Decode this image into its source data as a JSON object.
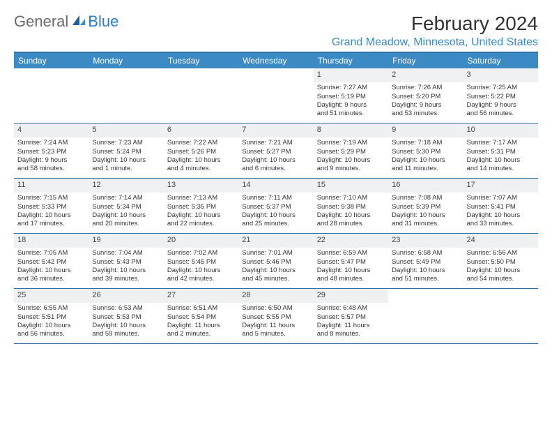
{
  "brand": {
    "part1": "General",
    "part2": "Blue"
  },
  "title": "February 2024",
  "location": "Grand Meadow, Minnesota, United States",
  "colors": {
    "header_bg": "#3b8ac4",
    "header_border": "#2d6fa8",
    "location_text": "#3b8ac4",
    "alt_row_bg": "#eef0f2"
  },
  "day_names": [
    "Sunday",
    "Monday",
    "Tuesday",
    "Wednesday",
    "Thursday",
    "Friday",
    "Saturday"
  ],
  "weeks": [
    [
      null,
      null,
      null,
      null,
      {
        "n": "1",
        "sunrise": "Sunrise: 7:27 AM",
        "sunset": "Sunset: 5:19 PM",
        "d1": "Daylight: 9 hours",
        "d2": "and 51 minutes."
      },
      {
        "n": "2",
        "sunrise": "Sunrise: 7:26 AM",
        "sunset": "Sunset: 5:20 PM",
        "d1": "Daylight: 9 hours",
        "d2": "and 53 minutes."
      },
      {
        "n": "3",
        "sunrise": "Sunrise: 7:25 AM",
        "sunset": "Sunset: 5:22 PM",
        "d1": "Daylight: 9 hours",
        "d2": "and 56 minutes."
      }
    ],
    [
      {
        "n": "4",
        "sunrise": "Sunrise: 7:24 AM",
        "sunset": "Sunset: 5:23 PM",
        "d1": "Daylight: 9 hours",
        "d2": "and 58 minutes."
      },
      {
        "n": "5",
        "sunrise": "Sunrise: 7:23 AM",
        "sunset": "Sunset: 5:24 PM",
        "d1": "Daylight: 10 hours",
        "d2": "and 1 minute."
      },
      {
        "n": "6",
        "sunrise": "Sunrise: 7:22 AM",
        "sunset": "Sunset: 5:26 PM",
        "d1": "Daylight: 10 hours",
        "d2": "and 4 minutes."
      },
      {
        "n": "7",
        "sunrise": "Sunrise: 7:21 AM",
        "sunset": "Sunset: 5:27 PM",
        "d1": "Daylight: 10 hours",
        "d2": "and 6 minutes."
      },
      {
        "n": "8",
        "sunrise": "Sunrise: 7:19 AM",
        "sunset": "Sunset: 5:29 PM",
        "d1": "Daylight: 10 hours",
        "d2": "and 9 minutes."
      },
      {
        "n": "9",
        "sunrise": "Sunrise: 7:18 AM",
        "sunset": "Sunset: 5:30 PM",
        "d1": "Daylight: 10 hours",
        "d2": "and 11 minutes."
      },
      {
        "n": "10",
        "sunrise": "Sunrise: 7:17 AM",
        "sunset": "Sunset: 5:31 PM",
        "d1": "Daylight: 10 hours",
        "d2": "and 14 minutes."
      }
    ],
    [
      {
        "n": "11",
        "sunrise": "Sunrise: 7:15 AM",
        "sunset": "Sunset: 5:33 PM",
        "d1": "Daylight: 10 hours",
        "d2": "and 17 minutes."
      },
      {
        "n": "12",
        "sunrise": "Sunrise: 7:14 AM",
        "sunset": "Sunset: 5:34 PM",
        "d1": "Daylight: 10 hours",
        "d2": "and 20 minutes."
      },
      {
        "n": "13",
        "sunrise": "Sunrise: 7:13 AM",
        "sunset": "Sunset: 5:35 PM",
        "d1": "Daylight: 10 hours",
        "d2": "and 22 minutes."
      },
      {
        "n": "14",
        "sunrise": "Sunrise: 7:11 AM",
        "sunset": "Sunset: 5:37 PM",
        "d1": "Daylight: 10 hours",
        "d2": "and 25 minutes."
      },
      {
        "n": "15",
        "sunrise": "Sunrise: 7:10 AM",
        "sunset": "Sunset: 5:38 PM",
        "d1": "Daylight: 10 hours",
        "d2": "and 28 minutes."
      },
      {
        "n": "16",
        "sunrise": "Sunrise: 7:08 AM",
        "sunset": "Sunset: 5:39 PM",
        "d1": "Daylight: 10 hours",
        "d2": "and 31 minutes."
      },
      {
        "n": "17",
        "sunrise": "Sunrise: 7:07 AM",
        "sunset": "Sunset: 5:41 PM",
        "d1": "Daylight: 10 hours",
        "d2": "and 33 minutes."
      }
    ],
    [
      {
        "n": "18",
        "sunrise": "Sunrise: 7:05 AM",
        "sunset": "Sunset: 5:42 PM",
        "d1": "Daylight: 10 hours",
        "d2": "and 36 minutes."
      },
      {
        "n": "19",
        "sunrise": "Sunrise: 7:04 AM",
        "sunset": "Sunset: 5:43 PM",
        "d1": "Daylight: 10 hours",
        "d2": "and 39 minutes."
      },
      {
        "n": "20",
        "sunrise": "Sunrise: 7:02 AM",
        "sunset": "Sunset: 5:45 PM",
        "d1": "Daylight: 10 hours",
        "d2": "and 42 minutes."
      },
      {
        "n": "21",
        "sunrise": "Sunrise: 7:01 AM",
        "sunset": "Sunset: 5:46 PM",
        "d1": "Daylight: 10 hours",
        "d2": "and 45 minutes."
      },
      {
        "n": "22",
        "sunrise": "Sunrise: 6:59 AM",
        "sunset": "Sunset: 5:47 PM",
        "d1": "Daylight: 10 hours",
        "d2": "and 48 minutes."
      },
      {
        "n": "23",
        "sunrise": "Sunrise: 6:58 AM",
        "sunset": "Sunset: 5:49 PM",
        "d1": "Daylight: 10 hours",
        "d2": "and 51 minutes."
      },
      {
        "n": "24",
        "sunrise": "Sunrise: 6:56 AM",
        "sunset": "Sunset: 5:50 PM",
        "d1": "Daylight: 10 hours",
        "d2": "and 54 minutes."
      }
    ],
    [
      {
        "n": "25",
        "sunrise": "Sunrise: 6:55 AM",
        "sunset": "Sunset: 5:51 PM",
        "d1": "Daylight: 10 hours",
        "d2": "and 56 minutes."
      },
      {
        "n": "26",
        "sunrise": "Sunrise: 6:53 AM",
        "sunset": "Sunset: 5:53 PM",
        "d1": "Daylight: 10 hours",
        "d2": "and 59 minutes."
      },
      {
        "n": "27",
        "sunrise": "Sunrise: 6:51 AM",
        "sunset": "Sunset: 5:54 PM",
        "d1": "Daylight: 11 hours",
        "d2": "and 2 minutes."
      },
      {
        "n": "28",
        "sunrise": "Sunrise: 6:50 AM",
        "sunset": "Sunset: 5:55 PM",
        "d1": "Daylight: 11 hours",
        "d2": "and 5 minutes."
      },
      {
        "n": "29",
        "sunrise": "Sunrise: 6:48 AM",
        "sunset": "Sunset: 5:57 PM",
        "d1": "Daylight: 11 hours",
        "d2": "and 8 minutes."
      },
      null,
      null
    ]
  ]
}
